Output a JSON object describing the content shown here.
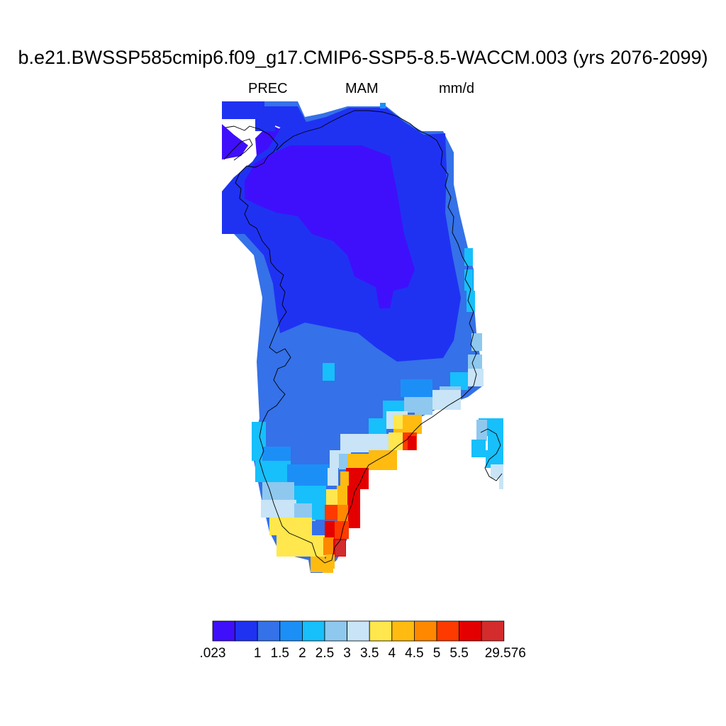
{
  "title": "b.e21.BWSSP585cmip6.f09_g17.CMIP6-SSP5-8.5-WACCM.003 (yrs 2076-2099)",
  "subtitle": {
    "variable": "PREC",
    "season": "MAM",
    "units": "mm/d"
  },
  "map": {
    "region": "Greenland",
    "projection": "polar stereographic",
    "coastline_color": "#000000",
    "data_grid_legend": [
      "AAAAAAAAAAAAAAAAAAAAAAAA",
      "AAAAAAAAAAAAAAAAAAAAAAAA",
      "AAAAAAAAAAAAAAAAAAAAAAAA",
      "AAAAAAAAAAAAAAAAAAAAAAAA",
      "AAAAAAAAAAAAAAAAAAAAAAAA",
      "BBBBBBBBBBBBBBBBBBBBBBBB"
    ]
  },
  "colorbar": {
    "colors": [
      "#3f0ffb",
      "#1f32f2",
      "#3571e8",
      "#1c8ff7",
      "#17bffb",
      "#8ec8ef",
      "#c8e4f6",
      "#ffe74d",
      "#ffbb0f",
      "#ff8800",
      "#ff3a00",
      "#e40000",
      "#d42c2c"
    ],
    "tick_labels": [
      ".023",
      "1",
      "1.5",
      "2",
      "2.5",
      "3",
      "3.5",
      "4",
      "4.5",
      "5",
      "5.5",
      "29.576"
    ]
  }
}
